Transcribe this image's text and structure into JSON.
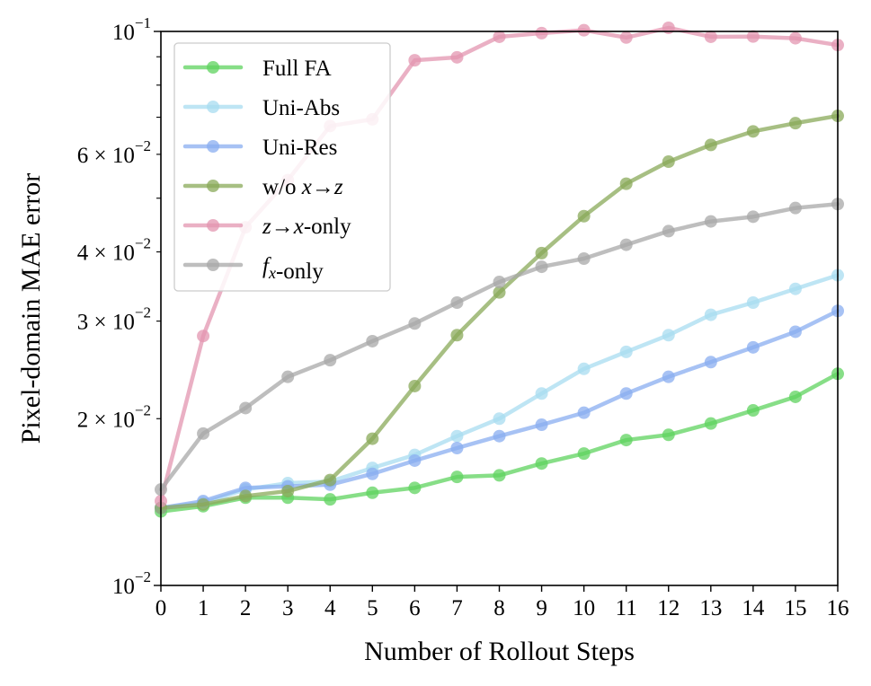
{
  "chart_data": {
    "type": "line",
    "xlabel": "Number of Rollout Steps",
    "ylabel": "Pixel-domain MAE error",
    "yscale": "log",
    "ylim": [
      0.01,
      0.1
    ],
    "xlim": [
      0,
      16
    ],
    "x": [
      0,
      1,
      2,
      3,
      4,
      5,
      6,
      7,
      8,
      9,
      10,
      11,
      12,
      13,
      14,
      15,
      16
    ],
    "x_ticks": [
      "0",
      "1",
      "2",
      "3",
      "4",
      "5",
      "6",
      "7",
      "8",
      "9",
      "10",
      "11",
      "12",
      "13",
      "14",
      "15",
      "16"
    ],
    "y_major_ticks": [
      {
        "value": 0.01,
        "mantissa": "",
        "base": "10",
        "exp": "−2"
      },
      {
        "value": 0.1,
        "mantissa": "",
        "base": "10",
        "exp": "−1"
      }
    ],
    "y_minor_labeled_ticks": [
      {
        "value": 0.02,
        "mantissa": "2 × ",
        "base": "10",
        "exp": "−2"
      },
      {
        "value": 0.03,
        "mantissa": "3 × ",
        "base": "10",
        "exp": "−2"
      },
      {
        "value": 0.04,
        "mantissa": "4 × ",
        "base": "10",
        "exp": "−2"
      },
      {
        "value": 0.06,
        "mantissa": "6 × ",
        "base": "10",
        "exp": "−2"
      }
    ],
    "y_minor_unlabeled_ticks": [
      0.05,
      0.07,
      0.08,
      0.09
    ],
    "legend_position": "top-left",
    "series": [
      {
        "name": "Full FA",
        "label_parts": [
          {
            "t": "Full FA",
            "math": false
          }
        ],
        "color": "#5fd35f",
        "values": [
          0.0136,
          0.0139,
          0.0144,
          0.0144,
          0.0143,
          0.0147,
          0.015,
          0.0157,
          0.0158,
          0.0166,
          0.0173,
          0.0183,
          0.0187,
          0.0196,
          0.0207,
          0.0219,
          0.0241
        ]
      },
      {
        "name": "Uni-Abs",
        "label_parts": [
          {
            "t": "Uni-Abs",
            "math": false
          }
        ],
        "color": "#a8dcf0",
        "values": [
          0.0138,
          0.0141,
          0.0149,
          0.0153,
          0.0154,
          0.0163,
          0.0172,
          0.0186,
          0.02,
          0.0222,
          0.0246,
          0.0264,
          0.0283,
          0.0308,
          0.0324,
          0.0343,
          0.0363
        ]
      },
      {
        "name": "Uni-Res",
        "label_parts": [
          {
            "t": "Uni-Res",
            "math": false
          }
        ],
        "color": "#8aaef0",
        "values": [
          0.0138,
          0.0142,
          0.015,
          0.0151,
          0.0152,
          0.0159,
          0.0168,
          0.0177,
          0.0186,
          0.0195,
          0.0205,
          0.0222,
          0.0238,
          0.0253,
          0.0269,
          0.0287,
          0.0313
        ]
      },
      {
        "name": "w/o x→z",
        "label_parts": [
          {
            "t": "w/o ",
            "math": false
          },
          {
            "t": "x",
            "math": true
          },
          {
            "t": "→",
            "math": false
          },
          {
            "t": "z",
            "math": true
          }
        ],
        "color": "#8aaa5a",
        "values": [
          0.0138,
          0.014,
          0.0145,
          0.0148,
          0.0155,
          0.0184,
          0.0229,
          0.0283,
          0.0338,
          0.0398,
          0.0464,
          0.0531,
          0.0582,
          0.0624,
          0.066,
          0.0683,
          0.0704
        ]
      },
      {
        "name": "z→x-only",
        "label_parts": [
          {
            "t": "z",
            "math": true
          },
          {
            "t": "→",
            "math": false
          },
          {
            "t": "x",
            "math": true
          },
          {
            "t": "-only",
            "math": false
          }
        ],
        "color": "#e396b0",
        "values": [
          0.0142,
          0.0282,
          0.0443,
          0.0539,
          0.0675,
          0.0694,
          0.0887,
          0.0898,
          0.0978,
          0.0993,
          0.1005,
          0.0975,
          0.1015,
          0.0978,
          0.0979,
          0.0972,
          0.0945
        ]
      },
      {
        "name": "f_x-only",
        "label_parts": [
          {
            "t": "f",
            "math": true
          },
          {
            "t": "x",
            "math": true,
            "sub": true
          },
          {
            "t": "-only",
            "math": false
          }
        ],
        "color": "#a8a8a8",
        "values": [
          0.0149,
          0.0188,
          0.0209,
          0.0238,
          0.0255,
          0.0276,
          0.0297,
          0.0324,
          0.0353,
          0.0376,
          0.0389,
          0.0412,
          0.0436,
          0.0454,
          0.0463,
          0.048,
          0.0488
        ]
      }
    ]
  }
}
